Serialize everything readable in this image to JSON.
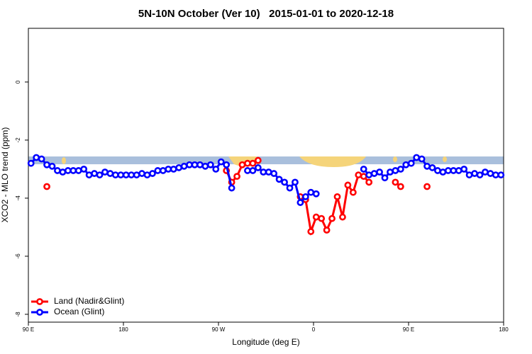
{
  "chart_data": {
    "type": "line",
    "title": "5N-10N October (Ver 10)   2015-01-01 to 2020-12-18",
    "x_label": "Longitude (deg E)",
    "y_label": "XCO2 - MLO trend (ppm)",
    "legend": "bottomleft",
    "xlim": [
      90,
      540
    ],
    "xticks": [
      {
        "value": 90,
        "label": "90 E"
      },
      180,
      {
        "value": 270,
        "label": "90 W"
      },
      {
        "value": 360,
        "label": "0"
      },
      {
        "value": 450,
        "label": "90 E"
      },
      {
        "value": 540,
        "label": "180"
      }
    ],
    "ylim": [
      -8.27,
      1.85
    ],
    "yticks": [
      0,
      -2,
      -4,
      -6,
      -8
    ],
    "x": [
      92.5,
      97.5,
      102.5,
      107.5,
      112.5,
      117.5,
      122.5,
      127.5,
      132.5,
      137.5,
      142.5,
      147.5,
      152.5,
      157.5,
      162.5,
      167.5,
      172.5,
      177.5,
      182.5,
      187.5,
      192.5,
      197.5,
      202.5,
      207.5,
      212.5,
      217.5,
      222.5,
      227.5,
      232.5,
      237.5,
      242.5,
      247.5,
      252.5,
      257.5,
      262.5,
      267.5,
      272.5,
      277.5,
      282.5,
      287.5,
      292.5,
      297.5,
      302.5,
      307.5,
      312.5,
      317.5,
      322.5,
      327.5,
      332.5,
      337.5,
      342.5,
      347.5,
      352.5,
      357.5,
      362.5,
      367.5,
      372.5,
      377.5,
      382.5,
      387.5,
      392.5,
      397.5,
      402.5,
      407.5,
      412.5,
      417.5,
      422.5,
      427.5,
      432.5,
      437.5,
      442.5,
      447.5,
      452.5,
      457.5,
      462.5,
      467.5,
      472.5,
      477.5,
      482.5,
      487.5,
      492.5,
      497.5,
      502.5,
      507.5,
      512.5,
      517.5,
      522.5,
      527.5,
      532.5,
      537.5
    ],
    "series": [
      {
        "name": "Land (Nadir&Glint)",
        "color": "#ff0000",
        "values": [
          null,
          null,
          null,
          -3.6,
          null,
          null,
          null,
          null,
          null,
          null,
          null,
          null,
          null,
          null,
          null,
          null,
          null,
          null,
          null,
          null,
          null,
          null,
          null,
          null,
          null,
          null,
          null,
          null,
          null,
          null,
          null,
          null,
          null,
          null,
          null,
          null,
          null,
          -3.05,
          -3.45,
          -3.25,
          -2.85,
          -2.8,
          -2.8,
          -2.7,
          null,
          null,
          null,
          null,
          null,
          null,
          null,
          -3.95,
          -4.05,
          -5.15,
          -4.65,
          -4.7,
          -5.1,
          -4.7,
          -3.95,
          -4.65,
          -3.55,
          -3.8,
          -3.2,
          -3.25,
          -3.45,
          null,
          null,
          null,
          null,
          -3.45,
          -3.6,
          null,
          null,
          null,
          null,
          -3.6,
          null,
          null,
          null,
          null,
          null,
          null,
          null,
          null,
          null,
          null,
          null,
          null,
          null,
          null
        ]
      },
      {
        "name": "Ocean (Glint)",
        "color": "#0000ff",
        "values": [
          -2.8,
          -2.6,
          -2.65,
          -2.85,
          -2.9,
          -3.05,
          -3.1,
          -3.05,
          -3.05,
          -3.05,
          -3.0,
          -3.2,
          -3.15,
          -3.2,
          -3.1,
          -3.15,
          -3.2,
          -3.2,
          -3.2,
          -3.2,
          -3.2,
          -3.15,
          -3.2,
          -3.15,
          -3.05,
          -3.05,
          -3.0,
          -3.0,
          -2.95,
          -2.9,
          -2.85,
          -2.85,
          -2.85,
          -2.9,
          -2.85,
          -3.0,
          -2.75,
          -2.85,
          -3.65,
          null,
          null,
          -3.05,
          -3.05,
          -2.95,
          -3.1,
          -3.1,
          -3.15,
          -3.35,
          -3.45,
          -3.65,
          -3.45,
          -4.15,
          -3.95,
          -3.8,
          -3.85,
          null,
          null,
          null,
          null,
          null,
          null,
          null,
          null,
          -3.0,
          -3.2,
          -3.15,
          -3.1,
          -3.3,
          -3.1,
          -3.05,
          -3.0,
          -2.85,
          -2.8,
          -2.6,
          -2.65,
          -2.9,
          -2.95,
          -3.05,
          -3.1,
          -3.05,
          -3.05,
          -3.05,
          -3.0,
          -3.2,
          -3.15,
          -3.2,
          -3.1,
          -3.15,
          -3.2,
          -3.2
        ]
      }
    ]
  }
}
